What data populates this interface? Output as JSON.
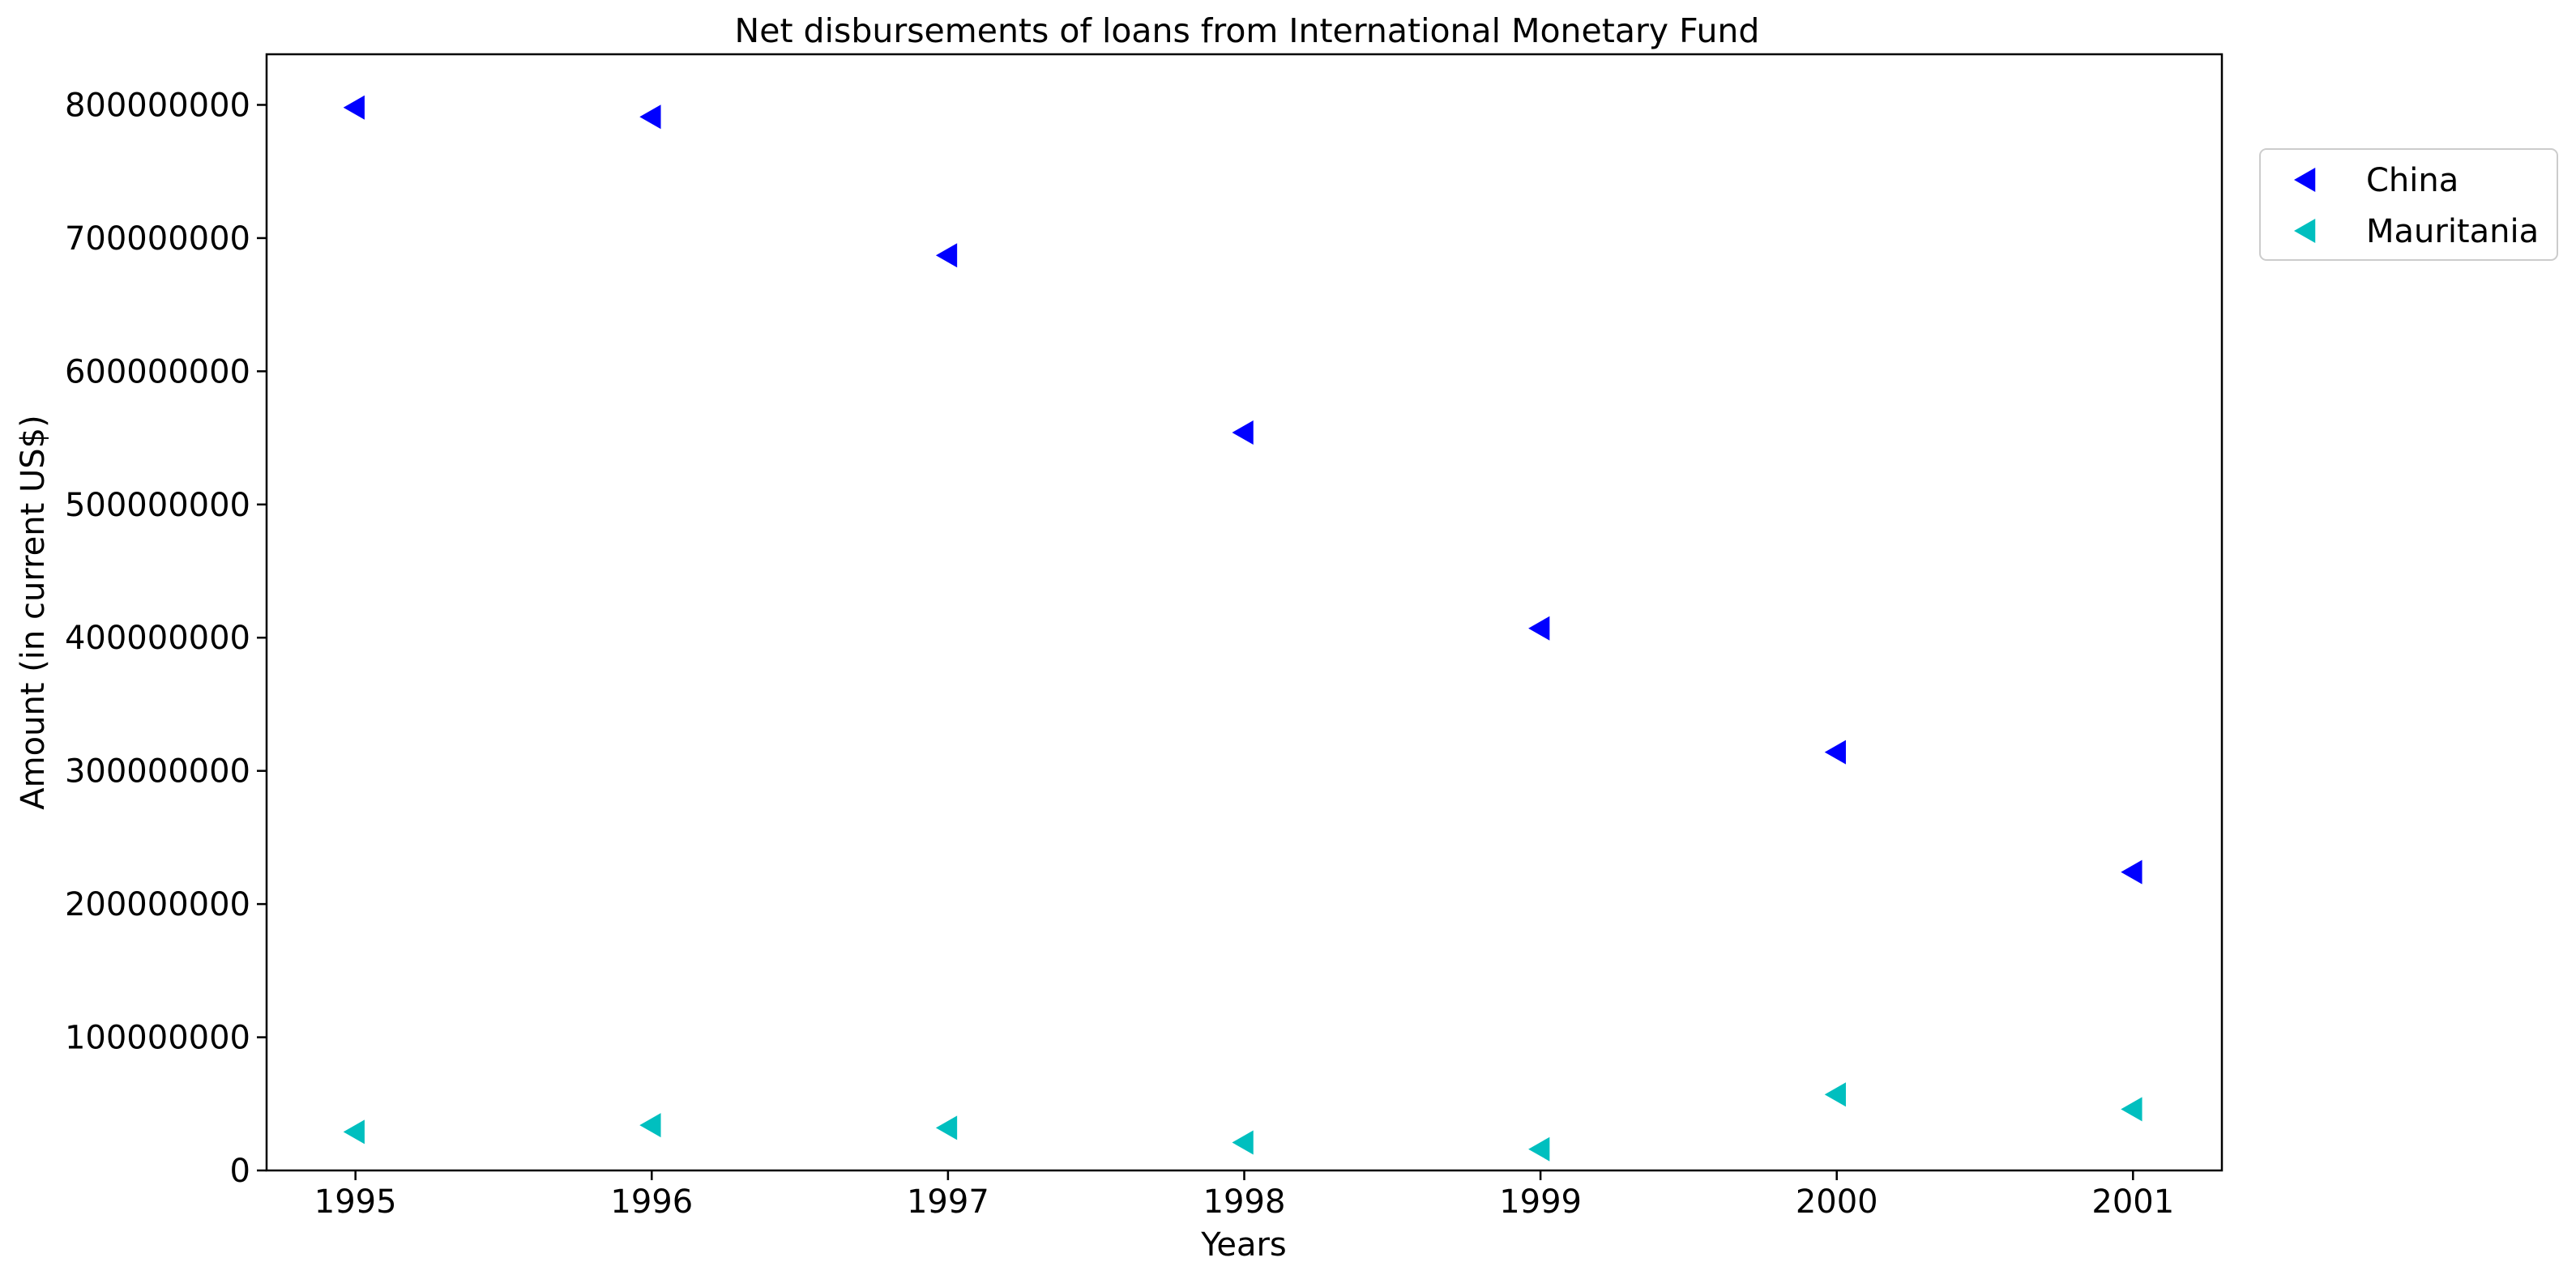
{
  "chart_data": {
    "type": "scatter",
    "title": "Net disbursements of loans from International Monetary Fund",
    "xlabel": "Years",
    "ylabel": "Amount (in current US$)",
    "x": [
      1995,
      1996,
      1997,
      1998,
      1999,
      2000,
      2001
    ],
    "xlim": [
      1994.7,
      2001.3
    ],
    "ylim": [
      0,
      838000000
    ],
    "yticks": [
      0,
      100000000,
      200000000,
      300000000,
      400000000,
      500000000,
      600000000,
      700000000,
      800000000
    ],
    "ytick_labels": [
      "0",
      "100000000",
      "200000000",
      "300000000",
      "400000000",
      "500000000",
      "600000000",
      "700000000",
      "800000000"
    ],
    "xtick_labels": [
      "1995",
      "1996",
      "1997",
      "1998",
      "1999",
      "2000",
      "2001"
    ],
    "grid": false,
    "legend_position": "outside-top-right",
    "marker": "triangle-left",
    "series": [
      {
        "name": "China",
        "color": "#0000ff",
        "values": [
          798000000,
          791000000,
          687000000,
          554000000,
          407000000,
          314000000,
          224000000
        ]
      },
      {
        "name": "Mauritania",
        "color": "#00bfbf",
        "values": [
          29000000,
          34000000,
          32000000,
          21000000,
          16000000,
          57000000,
          46000000
        ]
      }
    ]
  }
}
